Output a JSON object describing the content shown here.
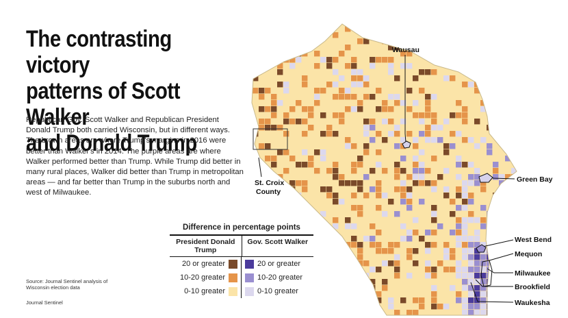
{
  "header": {
    "title_line1": "The contrasting victory",
    "title_line2": "patterns of Scott Walker",
    "title_line3": "and Donald Trump"
  },
  "intro": "Republican Gov. Scott Walker and Republican President Donald Trump both carried Wisconsin, but in different ways.  The brown areas are where Trump's margins in 2016 were better than Walker's in 2014. The purple areas are where Walker performed better than Trump. While Trump did better in many rural places, Walker did better than Trump in metropolitan areas — and far better than Trump in the suburbs north and west of Milwaukee.",
  "source": "Source: Journal Sentinel analysis of Wisconsin election data",
  "credit": "Journal Sentinel",
  "legend": {
    "title": "Difference in percentage points",
    "trump_header": "President Donald Trump",
    "walker_header": "Gov. Scott Walker",
    "rows": [
      {
        "label": "20 or greater",
        "trump_color": "#7a4a2a",
        "walker_color": "#4b3b9c"
      },
      {
        "label": "10-20 greater",
        "trump_color": "#e5944a",
        "walker_color": "#9a8fd0"
      },
      {
        "label": "0-10 greater",
        "trump_color": "#fbe4a8",
        "walker_color": "#dcd8ee"
      }
    ]
  },
  "map": {
    "labels": {
      "wausau": "Wausau",
      "st_croix_1": "St. Croix",
      "st_croix_2": "County",
      "green_bay": "Green Bay",
      "west_bend": "West Bend",
      "mequon": "Mequon",
      "milwaukee": "Milwaukee",
      "brookfield": "Brookfield",
      "waukesha": "Waukesha"
    }
  }
}
